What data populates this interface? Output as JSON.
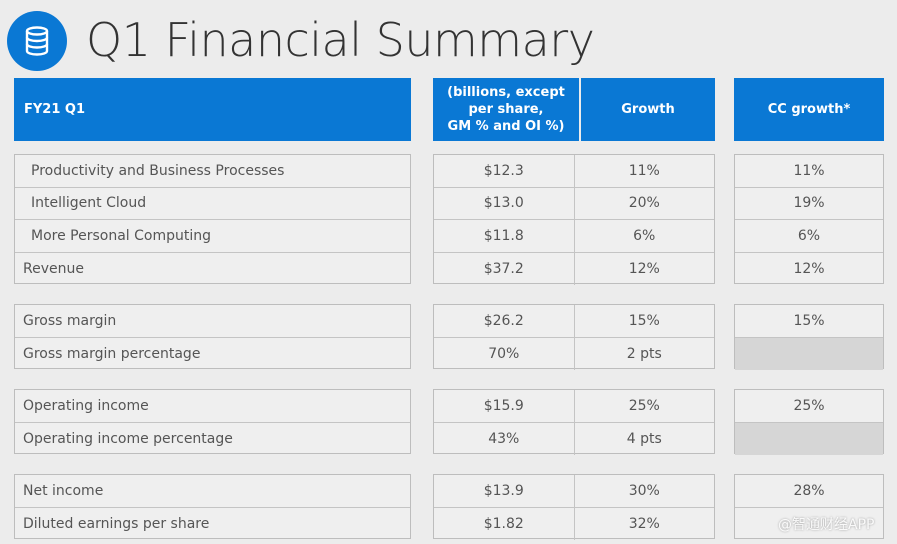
{
  "title": "Q1 Financial Summary",
  "icon": "database-icon",
  "accent_color": "#0a78d4",
  "header": {
    "label": "FY21 Q1",
    "value_col": "(billions, except per share, GM % and OI %)",
    "value_col_lines": [
      "(billions, except",
      "per share,",
      "GM % and OI %)"
    ],
    "growth_col": "Growth",
    "cc_col": "CC growth*"
  },
  "groups": [
    {
      "rows": [
        {
          "label": "Productivity and Business Processes",
          "value": "$12.3",
          "growth": "11%",
          "cc": "11%",
          "indent": true
        },
        {
          "label": "Intelligent Cloud",
          "value": "$13.0",
          "growth": "20%",
          "cc": "19%",
          "indent": true
        },
        {
          "label": "More Personal Computing",
          "value": "$11.8",
          "growth": "6%",
          "cc": "6%",
          "indent": true
        },
        {
          "label": "Revenue",
          "value": "$37.2",
          "growth": "12%",
          "cc": "12%"
        }
      ]
    },
    {
      "rows": [
        {
          "label": "Gross margin",
          "value": "$26.2",
          "growth": "15%",
          "cc": "15%"
        },
        {
          "label": "Gross margin percentage",
          "value": "70%",
          "growth": "2 pts",
          "cc": null
        }
      ]
    },
    {
      "rows": [
        {
          "label": "Operating income",
          "value": "$15.9",
          "growth": "25%",
          "cc": "25%"
        },
        {
          "label": "Operating income percentage",
          "value": "43%",
          "growth": "4 pts",
          "cc": null
        }
      ]
    },
    {
      "rows": [
        {
          "label": "Net income",
          "value": "$13.9",
          "growth": "30%",
          "cc": "28%"
        },
        {
          "label": "Diluted earnings per share",
          "value": "$1.82",
          "growth": "32%",
          "cc": ""
        }
      ]
    }
  ],
  "watermark": "@智通财经APP"
}
